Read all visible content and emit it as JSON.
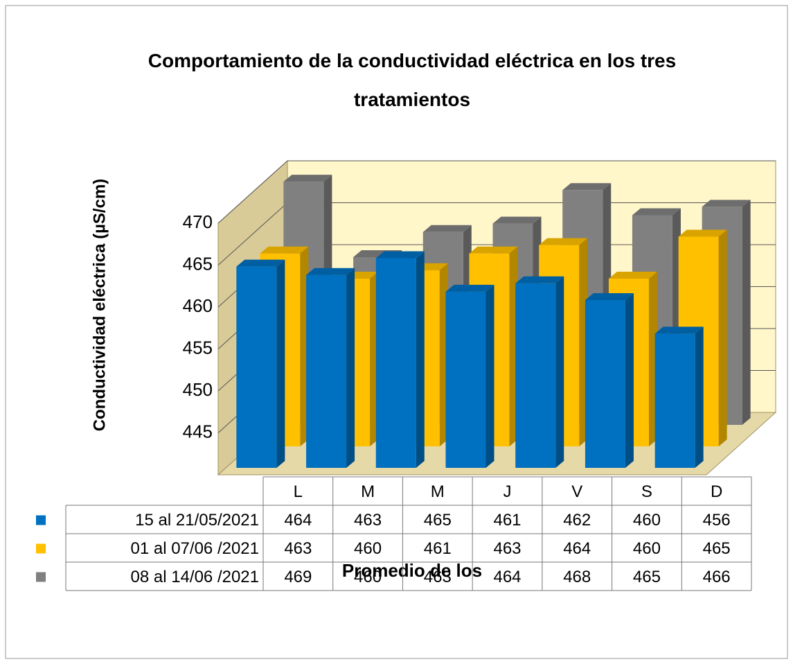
{
  "chart_data": {
    "type": "bar3d",
    "title": "Comportamiento de la conductividad eléctrica en los tres tratamientos",
    "y_label": "Conductividad eléctrica (µS/cm)",
    "x_label": "Promedio de los",
    "categories": [
      "L",
      "M",
      "M",
      "J",
      "V",
      "S",
      "D"
    ],
    "series": [
      {
        "name": "15 al 21/05/2021",
        "color": "#0070c0",
        "values": [
          464,
          463,
          465,
          461,
          462,
          460,
          456
        ]
      },
      {
        "name": "01 al 07/06 /2021",
        "color": "#ffc000",
        "values": [
          463,
          460,
          461,
          463,
          464,
          460,
          465
        ]
      },
      {
        "name": "08 al 14/06 /2021",
        "color": "#808080",
        "values": [
          469,
          460,
          463,
          464,
          468,
          465,
          466
        ]
      }
    ],
    "ylim": [
      440,
      470
    ],
    "yticks": [
      445,
      450,
      455,
      460,
      465,
      470
    ],
    "grid": true,
    "data_table": true
  }
}
